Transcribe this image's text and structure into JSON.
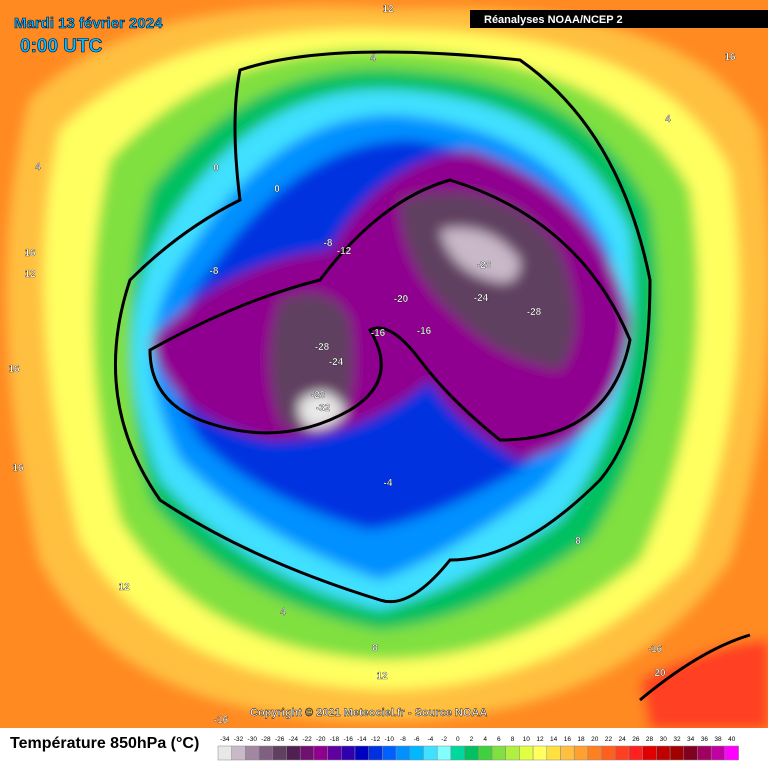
{
  "header": {
    "date": "Mardi 13 février 2024",
    "time": "0:00 UTC",
    "source": "Réanalyses NOAA/NCEP 2"
  },
  "copyright": "Copyright © 2021 Meteociel.fr - Source NOAA",
  "legend": {
    "title": "Température 850hPa (°C)",
    "values": [
      -34,
      -32,
      -30,
      -28,
      -26,
      -24,
      -22,
      -20,
      -18,
      -16,
      -14,
      -12,
      -10,
      -8,
      -6,
      -4,
      -2,
      0,
      2,
      4,
      6,
      8,
      10,
      12,
      14,
      16,
      18,
      20,
      22,
      24,
      26,
      28,
      30,
      32,
      34,
      36,
      38,
      40
    ],
    "colors": [
      "#e8e8e8",
      "#c8b8c8",
      "#a088a0",
      "#806080",
      "#604060",
      "#502050",
      "#701070",
      "#900090",
      "#6000a0",
      "#3000b0",
      "#0000c0",
      "#0030e0",
      "#0060ff",
      "#0090ff",
      "#00b8ff",
      "#40e0ff",
      "#80ffff",
      "#00d8a0",
      "#00c060",
      "#40d040",
      "#80e040",
      "#b0f040",
      "#e0ff40",
      "#ffff60",
      "#ffe040",
      "#ffc040",
      "#ffa030",
      "#ff8020",
      "#ff6020",
      "#ff4020",
      "#ff2020",
      "#e00000",
      "#c00000",
      "#a00000",
      "#800020",
      "#a00060",
      "#c000a0",
      "#ff00ff"
    ]
  },
  "contour_labels": [
    12,
    4,
    16,
    4,
    4,
    0,
    0,
    -8,
    -12,
    -8,
    16,
    12,
    -28,
    -20,
    -24,
    -28,
    -16,
    -16,
    -28,
    -24,
    -28,
    -32,
    16,
    16,
    -4,
    8,
    12,
    4,
    8,
    12,
    -16,
    20,
    -16
  ]
}
